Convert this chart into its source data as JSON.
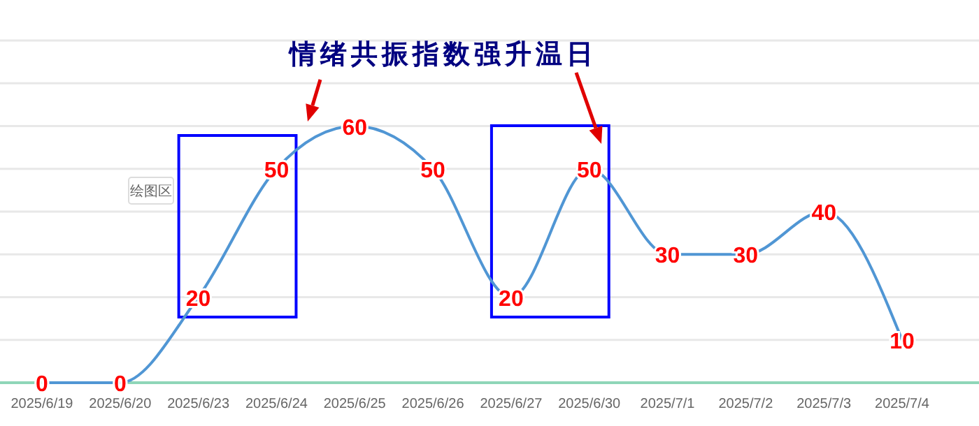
{
  "chart_data": {
    "type": "line",
    "categories": [
      "2025/6/19",
      "2025/6/20",
      "2025/6/23",
      "2025/6/24",
      "2025/6/25",
      "2025/6/26",
      "2025/6/27",
      "2025/6/30",
      "2025/7/1",
      "2025/7/2",
      "2025/7/3",
      "2025/7/4"
    ],
    "series": [
      {
        "color": "#5096d4",
        "values": [
          0,
          0,
          20,
          50,
          60,
          50,
          20,
          50,
          30,
          30,
          40,
          10
        ]
      }
    ],
    "ylim": [
      0,
      80
    ],
    "yticks": [
      {
        "value": 0,
        "label": null
      },
      {
        "value": 10,
        "label": null
      },
      {
        "value": 20,
        "label": null
      },
      {
        "value": 30,
        "label": null
      },
      {
        "value": 40,
        "label": null
      },
      {
        "value": 50,
        "label": null
      },
      {
        "value": 60,
        "label": null
      },
      {
        "value": 70,
        "label": null
      },
      {
        "value": 80,
        "label": null
      }
    ],
    "tick_labels": "x",
    "grid": "y",
    "marker": "none",
    "line_style": "solid",
    "data_labels": true,
    "annotations": [
      "情绪共振指数强升温日",
      "绘图区"
    ]
  }
}
